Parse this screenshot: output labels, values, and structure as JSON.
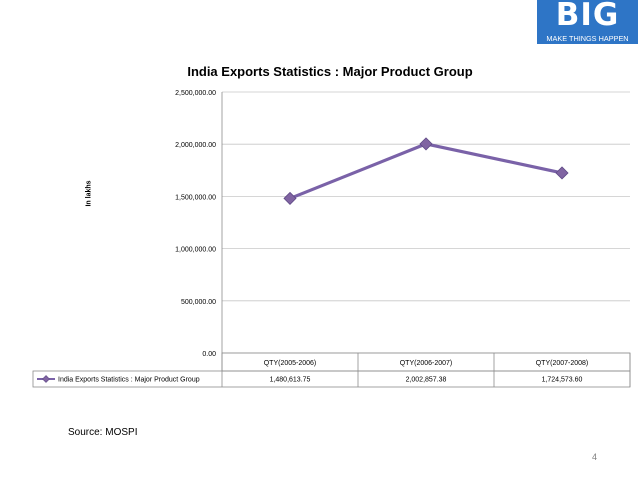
{
  "logo": {
    "text": "BIG",
    "tagline": "MAKE THINGS HAPPEN",
    "color": "#2e75c6"
  },
  "footer": {
    "source": "Source: MOSPI",
    "page_number": "4"
  },
  "chart_data": {
    "type": "line",
    "title": "India Exports Statistics : Major Product Group",
    "xlabel": "",
    "ylabel": "In lakhs",
    "categories": [
      "QTY(2005-2006)",
      "QTY(2006-2007)",
      "QTY(2007-2008)"
    ],
    "series": [
      {
        "name": "India Exports Statistics : Major Product Group",
        "values": [
          1480613.75,
          2002857.38,
          1724573.6
        ],
        "value_labels": [
          "1,480,613.75",
          "2,002,857.38",
          "1,724,573.60"
        ],
        "color": "#7a62a8",
        "marker_color": "#8064a2"
      }
    ],
    "ylim": [
      0,
      2500000
    ],
    "yticks": [
      0,
      500000,
      1000000,
      1500000,
      2000000,
      2500000
    ],
    "ytick_labels": [
      "0.00",
      "500,000.00",
      "1,000,000.00",
      "1,500,000.00",
      "2,000,000.00",
      "2,500,000.00"
    ],
    "grid": true,
    "legend": "data table"
  }
}
